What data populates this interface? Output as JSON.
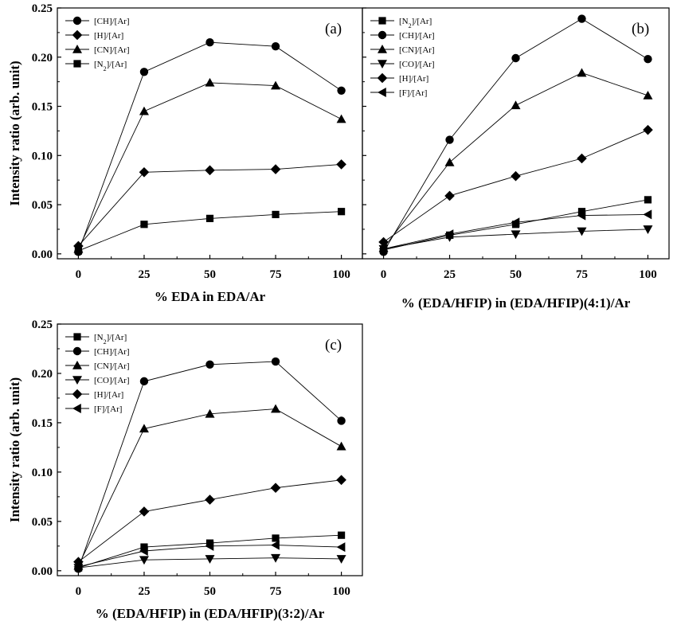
{
  "chart_data": [
    {
      "type": "line",
      "panel_label": "(a)",
      "xlabel": "% EDA in EDA/Ar",
      "ylabel": "Intensity ratio (arb. unit)",
      "x": [
        0,
        25,
        50,
        75,
        100
      ],
      "xticks": [
        "0",
        "25",
        "50",
        "75",
        "100"
      ],
      "yticks": [
        "0.00",
        "0.05",
        "0.10",
        "0.15",
        "0.20",
        "0.25"
      ],
      "xlim": [
        -8,
        108
      ],
      "ylim": [
        -0.005,
        0.25
      ],
      "legend_position": "top-left",
      "series": [
        {
          "name": "[CH]/[Ar]",
          "sub": "",
          "marker": "circle",
          "values": [
            0.002,
            0.185,
            0.215,
            0.211,
            0.166
          ]
        },
        {
          "name": "[H]/[Ar]",
          "sub": "",
          "marker": "diamond",
          "values": [
            0.008,
            0.083,
            0.085,
            0.086,
            0.091
          ]
        },
        {
          "name": "[CN]/[Ar]",
          "sub": "",
          "marker": "triangle-up",
          "values": [
            0.005,
            0.145,
            0.174,
            0.171,
            0.137
          ]
        },
        {
          "name": "[N]/[Ar]",
          "sub": "2",
          "marker": "square",
          "values": [
            0.003,
            0.03,
            0.036,
            0.04,
            0.043
          ]
        }
      ]
    },
    {
      "type": "line",
      "panel_label": "(b)",
      "xlabel": "% (EDA/HFIP) in (EDA/HFIP)(4:1)/Ar",
      "ylabel": "",
      "x": [
        0,
        25,
        50,
        75,
        100
      ],
      "xticks": [
        "0",
        "25",
        "50",
        "75",
        "100"
      ],
      "yticks": [],
      "xlim": [
        -8,
        108
      ],
      "ylim": [
        -0.005,
        0.25
      ],
      "legend_position": "top-left",
      "series": [
        {
          "name": "[N]/[Ar]",
          "sub": "2",
          "marker": "square",
          "values": [
            0.004,
            0.019,
            0.03,
            0.043,
            0.055
          ]
        },
        {
          "name": "[CH]/[Ar]",
          "sub": "",
          "marker": "circle",
          "values": [
            0.002,
            0.116,
            0.199,
            0.239,
            0.198
          ]
        },
        {
          "name": "[CN]/[Ar]",
          "sub": "",
          "marker": "triangle-up",
          "values": [
            0.006,
            0.093,
            0.151,
            0.184,
            0.161
          ]
        },
        {
          "name": "[CO]/[Ar]",
          "sub": "",
          "marker": "triangle-down",
          "values": [
            0.005,
            0.017,
            0.02,
            0.023,
            0.025
          ]
        },
        {
          "name": "[H]/[Ar]",
          "sub": "",
          "marker": "diamond",
          "values": [
            0.012,
            0.059,
            0.079,
            0.097,
            0.126
          ]
        },
        {
          "name": "[F]/[Ar]",
          "sub": "",
          "marker": "triangle-left",
          "values": [
            0.005,
            0.02,
            0.032,
            0.039,
            0.04
          ]
        }
      ]
    },
    {
      "type": "line",
      "panel_label": "(c)",
      "xlabel": "% (EDA/HFIP) in (EDA/HFIP)(3:2)/Ar",
      "ylabel": "Intensity ratio (arb. unit)",
      "x": [
        0,
        25,
        50,
        75,
        100
      ],
      "xticks": [
        "0",
        "25",
        "50",
        "75",
        "100"
      ],
      "yticks": [
        "0.00",
        "0.05",
        "0.10",
        "0.15",
        "0.20",
        "0.25"
      ],
      "xlim": [
        -8,
        108
      ],
      "ylim": [
        -0.005,
        0.25
      ],
      "legend_position": "top-left",
      "series": [
        {
          "name": "[N]/[Ar]",
          "sub": "2",
          "marker": "square",
          "values": [
            0.003,
            0.024,
            0.028,
            0.033,
            0.036
          ]
        },
        {
          "name": "[CH]/[Ar]",
          "sub": "",
          "marker": "circle",
          "values": [
            0.002,
            0.192,
            0.209,
            0.212,
            0.152
          ]
        },
        {
          "name": "[CN]/[Ar]",
          "sub": "",
          "marker": "triangle-up",
          "values": [
            0.005,
            0.144,
            0.159,
            0.164,
            0.126
          ]
        },
        {
          "name": "[CO]/[Ar]",
          "sub": "",
          "marker": "triangle-down",
          "values": [
            0.003,
            0.011,
            0.012,
            0.013,
            0.012
          ]
        },
        {
          "name": "[H]/[Ar]",
          "sub": "",
          "marker": "diamond",
          "values": [
            0.009,
            0.06,
            0.072,
            0.084,
            0.092
          ]
        },
        {
          "name": "[F]/[Ar]",
          "sub": "",
          "marker": "triangle-left",
          "values": [
            0.004,
            0.02,
            0.025,
            0.026,
            0.024
          ]
        }
      ]
    }
  ]
}
